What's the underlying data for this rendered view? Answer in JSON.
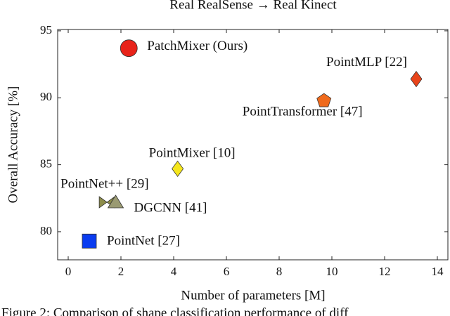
{
  "chart_data": {
    "type": "scatter",
    "title": "Real RealSense → Real Kinect",
    "xlabel": "Number of parameters [M]",
    "ylabel": "Overall Accuracy [%]",
    "xlim": [
      -0.4,
      14.4
    ],
    "ylim": [
      77.9,
      95.1
    ],
    "xticks": [
      0,
      2,
      4,
      6,
      8,
      10,
      12,
      14
    ],
    "yticks": [
      80,
      85,
      90,
      95
    ],
    "series": [
      {
        "name": "PatchMixer (Ours)",
        "color": "#e8231a",
        "marker": "circle",
        "x": [
          2.3
        ],
        "values": [
          93.7
        ]
      },
      {
        "name": "PointMLP [22]",
        "color": "#e8441a",
        "marker": "diamond",
        "x": [
          13.2
        ],
        "values": [
          91.4
        ]
      },
      {
        "name": "PointTransformer [47]",
        "color": "#f06a1c",
        "marker": "pentagon",
        "x": [
          9.7
        ],
        "values": [
          89.8
        ]
      },
      {
        "name": "PointMixer [10]",
        "color": "#f5e61c",
        "marker": "diamond",
        "x": [
          4.15
        ],
        "values": [
          84.7
        ]
      },
      {
        "name": "PointNet++ [29]",
        "color": "#8c8c4a",
        "marker": "bowtie",
        "x": [
          1.47
        ],
        "values": [
          82.2
        ]
      },
      {
        "name": "DGCNN [41]",
        "color": "#9a9a72",
        "marker": "triangle",
        "x": [
          1.8
        ],
        "values": [
          82.2
        ]
      },
      {
        "name": "PointNet [27]",
        "color": "#0a3cf0",
        "marker": "square",
        "x": [
          0.8
        ],
        "values": [
          79.3
        ]
      }
    ]
  },
  "caption": "Figure 2: Comparison of shape classification performance of diff"
}
